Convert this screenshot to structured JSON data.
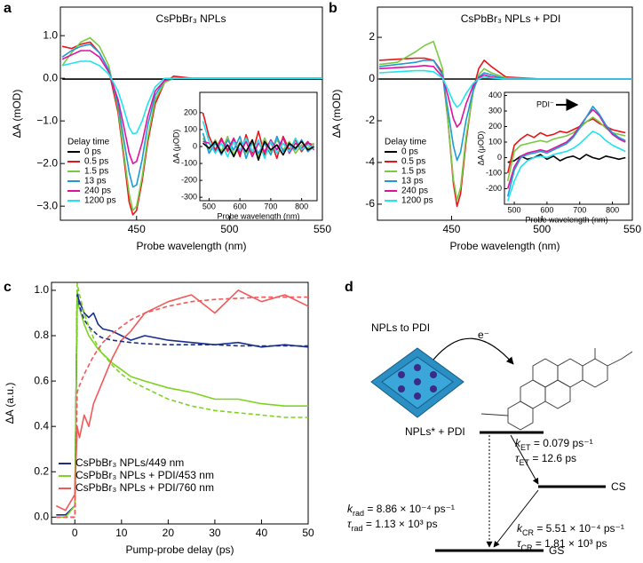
{
  "chart_data": [
    {
      "type": "line",
      "panel_label": "a",
      "title": "CsPbBr₃ NPLs",
      "xlabel": "Probe wavelength (nm)",
      "ylabel": "ΔA (mOD)",
      "legend_title": "Delay time",
      "xlim": [
        409,
        550
      ],
      "xticks": [
        450,
        500,
        550
      ],
      "ylim": [
        -3.33,
        1.67
      ],
      "yticks": [
        {
          "value": 1,
          "label": "1.0"
        },
        {
          "value": 0,
          "label": "0.0"
        },
        {
          "value": -1,
          "label": "−1.0"
        },
        {
          "value": -2,
          "label": "−2.0"
        },
        {
          "value": -3,
          "label": "−3.0"
        }
      ],
      "x": [
        410,
        415,
        420,
        425,
        430,
        435,
        440,
        443,
        446,
        448,
        450,
        453,
        456,
        460,
        465,
        470,
        480,
        500,
        525,
        550
      ],
      "series": [
        {
          "name": "0 ps",
          "color": "#000000",
          "values": [
            -0.02,
            -0.02,
            -0.02,
            -0.02,
            -0.02,
            -0.02,
            -0.02,
            -0.02,
            -0.02,
            -0.02,
            -0.02,
            -0.02,
            -0.02,
            -0.02,
            -0.02,
            -0.02,
            -0.02,
            -0.02,
            -0.02,
            -0.02
          ]
        },
        {
          "name": "0.5 ps",
          "color": "#e8141b",
          "values": [
            0.75,
            0.7,
            0.8,
            0.85,
            0.6,
            0.2,
            -0.8,
            -1.8,
            -2.9,
            -3.2,
            -3.1,
            -2.4,
            -1.5,
            -0.6,
            -0.1,
            0.05,
            0,
            0,
            0,
            0
          ]
        },
        {
          "name": "1.5 ps",
          "color": "#7ac943",
          "values": [
            0.3,
            0.6,
            0.85,
            0.95,
            0.75,
            0.3,
            -0.7,
            -1.7,
            -2.7,
            -3.1,
            -3.0,
            -2.3,
            -1.4,
            -0.5,
            -0.1,
            0,
            0,
            0,
            0,
            0
          ]
        },
        {
          "name": "13 ps",
          "color": "#1f9ad6",
          "values": [
            0.5,
            0.65,
            0.75,
            0.8,
            0.6,
            0.2,
            -0.6,
            -1.4,
            -2.2,
            -2.55,
            -2.5,
            -1.9,
            -1.1,
            -0.4,
            -0.05,
            0,
            0,
            0,
            0,
            0
          ]
        },
        {
          "name": "240 ps",
          "color": "#e0119d",
          "values": [
            0.45,
            0.55,
            0.65,
            0.65,
            0.5,
            0.15,
            -0.5,
            -1.1,
            -1.75,
            -2.0,
            -1.95,
            -1.5,
            -0.9,
            -0.3,
            -0.05,
            0,
            0,
            0,
            0,
            0
          ]
        },
        {
          "name": "1200 ps",
          "color": "#1fe3ee",
          "values": [
            0.3,
            0.35,
            0.4,
            0.4,
            0.3,
            0.1,
            -0.3,
            -0.7,
            -1.15,
            -1.3,
            -1.28,
            -1.0,
            -0.6,
            -0.2,
            0,
            0,
            0,
            0,
            0,
            0
          ]
        }
      ],
      "inset": {
        "xlabel": "Probe wavelength (nm)",
        "ylabel": "ΔA (μOD)",
        "xlim": [
          470,
          850
        ],
        "xticks": [
          500,
          600,
          700,
          800
        ],
        "ylim": [
          -320,
          320
        ],
        "yticks": [
          200,
          100,
          0,
          -100,
          -200,
          -300
        ],
        "x": [
          480,
          500,
          520,
          540,
          560,
          580,
          600,
          620,
          640,
          660,
          680,
          700,
          720,
          740,
          760,
          780,
          800,
          820,
          840
        ],
        "series": [
          {
            "color": "#e8141b",
            "values": [
              200,
              60,
              -20,
              50,
              -30,
              40,
              -60,
              70,
              -40,
              90,
              -50,
              30,
              -70,
              60,
              -20,
              40,
              -30,
              20,
              10
            ]
          },
          {
            "color": "#7ac943",
            "values": [
              50,
              -20,
              40,
              -30,
              60,
              -50,
              30,
              -40,
              20,
              -60,
              50,
              -30,
              40,
              -20,
              30,
              -40,
              10,
              -10,
              20
            ]
          },
          {
            "color": "#1f9ad6",
            "values": [
              80,
              -40,
              20,
              -50,
              40,
              -20,
              60,
              -70,
              30,
              -40,
              20,
              -50,
              60,
              -30,
              10,
              -20,
              40,
              -30,
              0
            ]
          },
          {
            "color": "#e0119d",
            "values": [
              30,
              20,
              -30,
              40,
              -20,
              50,
              -40,
              30,
              -60,
              20,
              -30,
              40,
              -20,
              50,
              -40,
              20,
              -10,
              30,
              -20
            ]
          },
          {
            "color": "#1fe3ee",
            "values": [
              150,
              30,
              -40,
              20,
              -60,
              30,
              -20,
              50,
              -30,
              40,
              -70,
              30,
              -40,
              20,
              -30,
              50,
              -20,
              10,
              -10
            ]
          },
          {
            "color": "#000000",
            "values": [
              20,
              -10,
              30,
              -40,
              10,
              -60,
              20,
              -30,
              40,
              -80,
              30,
              -20,
              10,
              -50,
              20,
              -10,
              30,
              -20,
              0
            ]
          }
        ]
      }
    },
    {
      "type": "line",
      "panel_label": "b",
      "title": "CsPbBr₃ NPLs + PDI",
      "xlabel": "Probe wavelength (nm)",
      "ylabel": "ΔA (mOD)",
      "legend_title": "Delay time",
      "xlim": [
        409,
        550
      ],
      "xticks": [
        450,
        500,
        550
      ],
      "ylim": [
        -6.77,
        3.45
      ],
      "yticks": [
        2,
        0,
        -2,
        -4,
        -6
      ],
      "x": [
        410,
        420,
        430,
        435,
        440,
        445,
        448,
        451,
        453,
        455,
        458,
        462,
        465,
        468,
        472,
        480,
        500,
        525,
        550
      ],
      "series": [
        {
          "name": "0 ps",
          "color": "#000000",
          "values": [
            0,
            0,
            0,
            0,
            0,
            0,
            0,
            0,
            0,
            0,
            0,
            0,
            0,
            0,
            0,
            0,
            0,
            0,
            0
          ]
        },
        {
          "name": "0.5 ps",
          "color": "#e8141b",
          "values": [
            0.9,
            0.95,
            1.0,
            1.0,
            0.9,
            0.3,
            -2.0,
            -5.0,
            -6.1,
            -5.5,
            -3.0,
            -0.5,
            0.5,
            0.9,
            0.6,
            0.1,
            0,
            0,
            0
          ]
        },
        {
          "name": "1.5 ps",
          "color": "#7ac943",
          "values": [
            0.7,
            0.8,
            1.3,
            1.6,
            1.8,
            0.5,
            -2.0,
            -4.8,
            -5.8,
            -5.2,
            -2.8,
            -0.6,
            0.2,
            0.5,
            0.3,
            0.05,
            0,
            0,
            0
          ]
        },
        {
          "name": "13 ps",
          "color": "#1f9ad6",
          "values": [
            0.6,
            0.7,
            0.8,
            0.9,
            0.9,
            0.2,
            -1.5,
            -3.2,
            -3.9,
            -3.5,
            -2.0,
            -0.5,
            0.1,
            0.3,
            0.2,
            0,
            0,
            0,
            0
          ]
        },
        {
          "name": "240 ps",
          "color": "#e0119d",
          "values": [
            0.5,
            0.55,
            0.6,
            0.65,
            0.6,
            0.1,
            -0.8,
            -1.9,
            -2.3,
            -2.1,
            -1.2,
            -0.3,
            0.05,
            0.2,
            0.1,
            0,
            0,
            0,
            0
          ]
        },
        {
          "name": "1200 ps",
          "color": "#1fe3ee",
          "values": [
            0.3,
            0.35,
            0.4,
            0.4,
            0.35,
            0.05,
            -0.5,
            -1.1,
            -1.35,
            -1.2,
            -0.7,
            -0.2,
            0,
            0.1,
            0.05,
            0,
            0,
            0,
            0
          ]
        }
      ],
      "inset": {
        "xlabel": "Probe wavelength (nm)",
        "ylabel": "ΔA (μOD)",
        "annotation": "PDI⁻",
        "xlim": [
          470,
          850
        ],
        "xticks": [
          500,
          600,
          700,
          800
        ],
        "ylim": [
          -300,
          420
        ],
        "yticks": [
          400,
          300,
          200,
          100,
          0,
          -100,
          -200
        ],
        "x": [
          480,
          500,
          520,
          540,
          560,
          580,
          600,
          620,
          640,
          660,
          680,
          700,
          720,
          740,
          760,
          780,
          800,
          820,
          840
        ],
        "series": [
          {
            "color": "#000000",
            "values": [
              -30,
              -20,
              10,
              -10,
              0,
              20,
              -10,
              10,
              -20,
              0,
              10,
              -10,
              20,
              0,
              -10,
              10,
              0,
              -10,
              0
            ]
          },
          {
            "color": "#e8141b",
            "values": [
              -100,
              80,
              120,
              150,
              130,
              160,
              140,
              150,
              170,
              160,
              180,
              200,
              230,
              250,
              220,
              200,
              180,
              170,
              160
            ]
          },
          {
            "color": "#7ac943",
            "values": [
              -150,
              40,
              80,
              90,
              100,
              110,
              100,
              120,
              130,
              140,
              160,
              190,
              230,
              260,
              230,
              190,
              160,
              150,
              140
            ]
          },
          {
            "color": "#e0119d",
            "values": [
              -200,
              -60,
              10,
              30,
              40,
              50,
              40,
              60,
              80,
              100,
              140,
              200,
              260,
              310,
              270,
              200,
              150,
              120,
              100
            ]
          },
          {
            "color": "#1f9ad6",
            "values": [
              -250,
              -80,
              0,
              20,
              30,
              40,
              30,
              50,
              70,
              90,
              130,
              190,
              260,
              330,
              280,
              210,
              160,
              130,
              110
            ]
          },
          {
            "color": "#1fe3ee",
            "values": [
              -280,
              -150,
              -60,
              -20,
              0,
              10,
              0,
              20,
              30,
              40,
              60,
              90,
              130,
              170,
              150,
              110,
              80,
              60,
              40
            ]
          }
        ]
      }
    },
    {
      "type": "line",
      "panel_label": "c",
      "xlabel": "Pump-probe delay (ps)",
      "ylabel": "ΔA (a.u.)",
      "xlim": [
        -5,
        50
      ],
      "xticks": [
        0,
        10,
        20,
        30,
        40,
        50
      ],
      "ylim": [
        -0.03,
        1.035
      ],
      "yticks": [
        {
          "value": 0,
          "label": "0.0"
        },
        {
          "value": 0.2,
          "label": "0.2"
        },
        {
          "value": 0.4,
          "label": "0.4"
        },
        {
          "value": 0.6,
          "label": "0.6"
        },
        {
          "value": 0.8,
          "label": "0.8"
        },
        {
          "value": 1,
          "label": "1.0"
        }
      ],
      "x": [
        -4,
        -2,
        0,
        0.5,
        1,
        2,
        3,
        4,
        5,
        6,
        8,
        10,
        12,
        15,
        20,
        25,
        30,
        35,
        40,
        45,
        50
      ],
      "series": [
        {
          "name": "CsPbBr₃ NPLs/449 nm",
          "color": "#1a2f8a",
          "values": [
            0.01,
            0.01,
            0.05,
            0.98,
            0.95,
            0.9,
            0.88,
            0.9,
            0.85,
            0.83,
            0.82,
            0.8,
            0.78,
            0.8,
            0.78,
            0.77,
            0.76,
            0.77,
            0.75,
            0.76,
            0.75
          ],
          "fit": [
            0,
            0,
            0,
            1.0,
            0.93,
            0.87,
            0.84,
            0.82,
            0.8,
            0.79,
            0.78,
            0.775,
            0.77,
            0.765,
            0.76,
            0.76,
            0.76,
            0.755,
            0.755,
            0.755,
            0.755
          ]
        },
        {
          "name": "CsPbBr₃ NPLs + PDI/453 nm",
          "color": "#7ed321",
          "values": [
            0,
            0,
            0.05,
            0.95,
            0.92,
            0.85,
            0.8,
            0.77,
            0.74,
            0.72,
            0.68,
            0.65,
            0.62,
            0.6,
            0.57,
            0.55,
            0.52,
            0.52,
            0.5,
            0.49,
            0.49
          ],
          "fit": [
            0,
            0,
            0,
            1.03,
            0.98,
            0.9,
            0.84,
            0.79,
            0.75,
            0.72,
            0.67,
            0.63,
            0.6,
            0.57,
            0.52,
            0.49,
            0.47,
            0.46,
            0.45,
            0.44,
            0.44
          ]
        },
        {
          "name": "CsPbBr₃ NPLs + PDI/760 nm",
          "color": "#f05a5a",
          "values": [
            0.05,
            0.03,
            0.1,
            0.4,
            0.35,
            0.45,
            0.4,
            0.5,
            0.55,
            0.6,
            0.7,
            0.78,
            0.82,
            0.9,
            0.95,
            0.98,
            0.9,
            1.0,
            0.95,
            0.98,
            0.93
          ],
          "fit": [
            0,
            0,
            0,
            0.55,
            0.58,
            0.63,
            0.67,
            0.71,
            0.74,
            0.77,
            0.81,
            0.84,
            0.87,
            0.9,
            0.93,
            0.95,
            0.96,
            0.965,
            0.97,
            0.97,
            0.97
          ]
        }
      ]
    }
  ],
  "diagram": {
    "panel_label": "d",
    "title": "NPLs to PDI",
    "electron": "e⁻",
    "levels": {
      "excited": "NPLs* + PDI",
      "cs": "CS",
      "gs": "GS"
    },
    "rates": [
      {
        "symbol": "k",
        "sub": "ET",
        "text": " = 0.079 ps⁻¹"
      },
      {
        "symbol": "τ",
        "sub": "ET",
        "text": " = 12.6 ps"
      },
      {
        "symbol": "k",
        "sub": "rad",
        "text": " = 8.86 × 10⁻⁴ ps⁻¹"
      },
      {
        "symbol": "τ",
        "sub": "rad",
        "text": " = 1.13 × 10³ ps"
      },
      {
        "symbol": "k",
        "sub": "CR",
        "text": " = 5.51 × 10⁻⁴ ps⁻¹"
      },
      {
        "symbol": "τ",
        "sub": "CR",
        "text": " = 1.81 × 10³ ps"
      }
    ]
  }
}
